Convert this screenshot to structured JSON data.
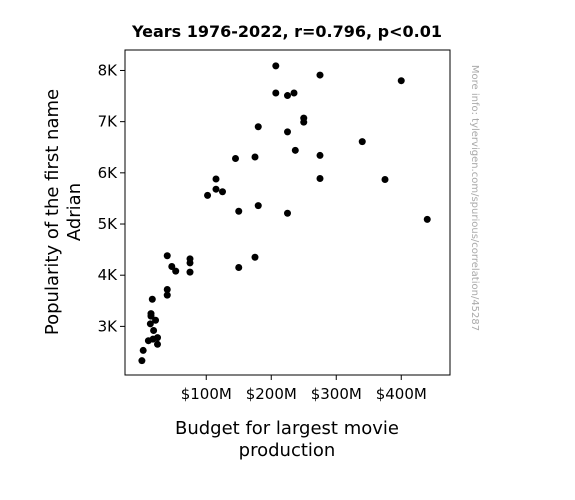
{
  "chart_data": {
    "type": "scatter",
    "title": "Years 1976-2022, r=0.796, p<0.01",
    "xlabel": [
      "Budget for largest movie",
      "production"
    ],
    "ylabel": [
      "Popularity of the first name",
      "Adrian"
    ],
    "xlim": [
      -25,
      475
    ],
    "ylim": [
      2050,
      8400
    ],
    "xticks": [
      {
        "value": 100,
        "label": "$100M"
      },
      {
        "value": 200,
        "label": "$200M"
      },
      {
        "value": 300,
        "label": "$300M"
      },
      {
        "value": 400,
        "label": "$400M"
      }
    ],
    "yticks": [
      {
        "value": 3000,
        "label": "3K"
      },
      {
        "value": 4000,
        "label": "4K"
      },
      {
        "value": 5000,
        "label": "5K"
      },
      {
        "value": 6000,
        "label": "6K"
      },
      {
        "value": 7000,
        "label": "7K"
      },
      {
        "value": 8000,
        "label": "8K"
      }
    ],
    "points": [
      {
        "x": 1,
        "y": 2330
      },
      {
        "x": 3,
        "y": 2530
      },
      {
        "x": 11,
        "y": 2720
      },
      {
        "x": 15,
        "y": 3200
      },
      {
        "x": 15,
        "y": 3250
      },
      {
        "x": 14,
        "y": 3050
      },
      {
        "x": 19,
        "y": 2920
      },
      {
        "x": 18,
        "y": 2750
      },
      {
        "x": 17,
        "y": 3530
      },
      {
        "x": 22,
        "y": 3120
      },
      {
        "x": 25,
        "y": 2780
      },
      {
        "x": 25,
        "y": 2650
      },
      {
        "x": 40,
        "y": 3610
      },
      {
        "x": 40,
        "y": 3720
      },
      {
        "x": 40,
        "y": 4380
      },
      {
        "x": 47,
        "y": 4170
      },
      {
        "x": 53,
        "y": 4080
      },
      {
        "x": 75,
        "y": 4320
      },
      {
        "x": 75,
        "y": 4240
      },
      {
        "x": 75,
        "y": 4060
      },
      {
        "x": 102,
        "y": 5560
      },
      {
        "x": 115,
        "y": 5880
      },
      {
        "x": 115,
        "y": 5680
      },
      {
        "x": 125,
        "y": 5630
      },
      {
        "x": 145,
        "y": 6280
      },
      {
        "x": 150,
        "y": 5250
      },
      {
        "x": 150,
        "y": 4150
      },
      {
        "x": 175,
        "y": 6310
      },
      {
        "x": 175,
        "y": 4350
      },
      {
        "x": 180,
        "y": 6900
      },
      {
        "x": 180,
        "y": 5360
      },
      {
        "x": 207,
        "y": 8090
      },
      {
        "x": 207,
        "y": 7560
      },
      {
        "x": 225,
        "y": 7510
      },
      {
        "x": 225,
        "y": 6800
      },
      {
        "x": 225,
        "y": 5210
      },
      {
        "x": 235,
        "y": 7560
      },
      {
        "x": 237,
        "y": 6440
      },
      {
        "x": 250,
        "y": 7070
      },
      {
        "x": 250,
        "y": 6990
      },
      {
        "x": 275,
        "y": 7910
      },
      {
        "x": 275,
        "y": 6340
      },
      {
        "x": 275,
        "y": 5890
      },
      {
        "x": 340,
        "y": 6610
      },
      {
        "x": 375,
        "y": 5870
      },
      {
        "x": 400,
        "y": 7800
      },
      {
        "x": 440,
        "y": 5090
      }
    ],
    "side_note": "More info: tylervigen.com/spurious/correlation/45287",
    "marker_color": "#000000",
    "grid": false,
    "legend": "none"
  }
}
